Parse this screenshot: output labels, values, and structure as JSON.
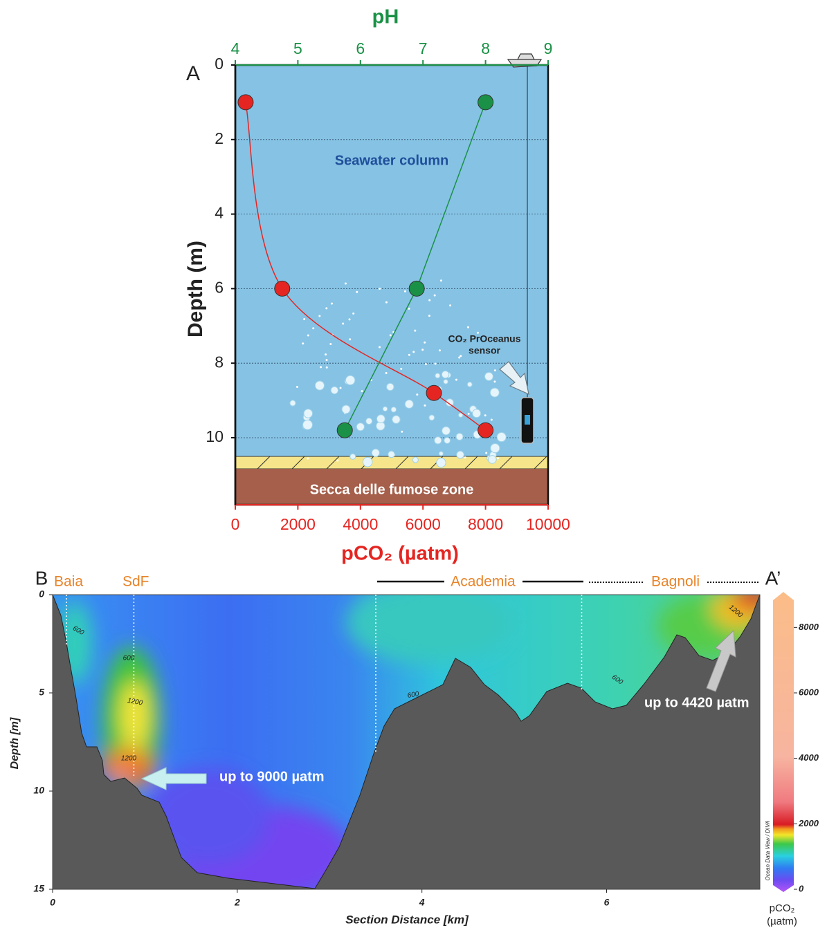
{
  "chart_data": [
    {
      "type": "line",
      "panel_label": "A",
      "x2_label": "pH",
      "x_label": "pCO₂ (µatm)",
      "y_label": "Depth (m)",
      "xlim": [
        0,
        10000
      ],
      "xticks": [
        0,
        2000,
        4000,
        6000,
        8000,
        10000
      ],
      "x2lim": [
        4,
        9
      ],
      "x2ticks": [
        4,
        5,
        6,
        7,
        8,
        9
      ],
      "ylim": [
        0,
        11.8
      ],
      "yticks": [
        0,
        2,
        4,
        6,
        8,
        10
      ],
      "y_inverted": true,
      "grid": true,
      "series": [
        {
          "color": "#e52521",
          "axis": "x",
          "values": [
            330,
            1500,
            6350,
            8000
          ],
          "depth": [
            1,
            6,
            8.8,
            9.8
          ],
          "smooth": true
        },
        {
          "color": "#1a9146",
          "axis": "x2",
          "values": [
            8.0,
            6.9,
            5.75
          ],
          "depth": [
            1,
            6,
            9.8
          ],
          "smooth": false
        }
      ],
      "annotations": [
        "Seawater column",
        "Secca delle fumose zone"
      ],
      "sensor_label": [
        "CO₂ PrOceanus",
        "sensor"
      ]
    },
    {
      "type": "section",
      "panel_label": "B",
      "end_label": "A’",
      "sites": [
        "Baia",
        "SdF",
        "Academia",
        "Bagnoli"
      ],
      "stations": [
        0.15,
        0.88,
        3.5,
        5.73
      ],
      "x_label": "Section Distance [km]",
      "y_label": "Depth [m]",
      "xlim": [
        0,
        7.66
      ],
      "xticks": [
        0,
        2,
        4,
        6
      ],
      "ylim": [
        0,
        15
      ],
      "yticks": [
        0,
        5,
        10,
        15
      ],
      "y_inverted": true,
      "colorbar": {
        "lim": [
          0,
          9000
        ],
        "ticks": [
          0,
          2000,
          4000,
          6000,
          8000
        ],
        "label": "pCO₂",
        "unit": "(µatm)"
      },
      "contour_labels": [
        600,
        600,
        1200,
        1200,
        600,
        600,
        1200
      ],
      "annotations": [
        "up to 9000 µatm",
        "up to 4420 µatm"
      ],
      "credit": "Ocean Data View / DIVA"
    }
  ]
}
